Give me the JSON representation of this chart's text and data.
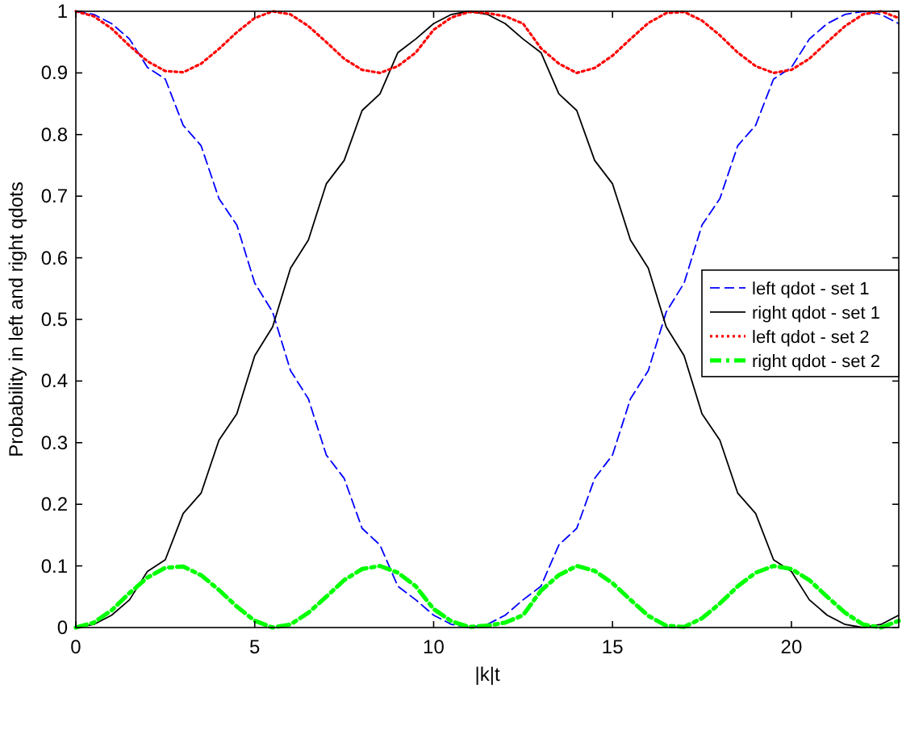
{
  "chart_data": {
    "type": "line",
    "xlabel": "|k|t",
    "ylabel": "Probability in left and right qdots",
    "x": [
      0,
      0.5,
      1,
      1.5,
      2,
      2.5,
      3,
      3.5,
      4,
      4.5,
      5,
      5.5,
      6,
      6.5,
      7,
      7.5,
      8,
      8.5,
      9,
      9.5,
      10,
      10.5,
      11,
      11.5,
      12,
      12.5,
      13,
      13.5,
      14,
      14.5,
      15,
      15.5,
      16,
      16.5,
      17,
      17.5,
      18,
      18.5,
      19,
      19.5,
      20,
      20.5,
      21,
      21.5,
      22,
      22.5,
      23
    ],
    "series": [
      {
        "name": "left qdot - set 1",
        "color": "#0000ff",
        "line_style": "dashed",
        "values": [
          1,
          0.995,
          0.98,
          0.955,
          0.909,
          0.89,
          0.815,
          0.782,
          0.696,
          0.653,
          0.559,
          0.512,
          0.417,
          0.371,
          0.28,
          0.242,
          0.161,
          0.134,
          0.067,
          0.045,
          0.02,
          0.005,
          0,
          0.005,
          0.02,
          0.045,
          0.067,
          0.134,
          0.161,
          0.242,
          0.28,
          0.371,
          0.417,
          0.512,
          0.559,
          0.653,
          0.696,
          0.782,
          0.815,
          0.89,
          0.909,
          0.955,
          0.98,
          0.995,
          1,
          0.995,
          0.98
        ]
      },
      {
        "name": "right qdot - set 1",
        "color": "#000000",
        "line_style": "solid",
        "values": [
          0,
          0.005,
          0.02,
          0.045,
          0.091,
          0.11,
          0.185,
          0.218,
          0.304,
          0.347,
          0.441,
          0.488,
          0.583,
          0.629,
          0.72,
          0.758,
          0.839,
          0.866,
          0.933,
          0.955,
          0.98,
          0.995,
          1,
          0.995,
          0.98,
          0.955,
          0.933,
          0.866,
          0.839,
          0.758,
          0.72,
          0.629,
          0.583,
          0.488,
          0.441,
          0.347,
          0.304,
          0.218,
          0.185,
          0.11,
          0.091,
          0.045,
          0.02,
          0.005,
          0,
          0.005,
          0.02
        ]
      },
      {
        "name": "left qdot - set 2",
        "color": "#ff0000",
        "line_style": "dotted",
        "values": [
          1,
          0.992,
          0.972,
          0.944,
          0.919,
          0.903,
          0.901,
          0.915,
          0.939,
          0.966,
          0.989,
          1,
          0.995,
          0.976,
          0.95,
          0.923,
          0.905,
          0.9,
          0.911,
          0.933,
          0.97,
          0.99,
          0.999,
          0.997,
          0.992,
          0.98,
          0.94,
          0.915,
          0.9,
          0.908,
          0.928,
          0.955,
          0.981,
          0.997,
          0.999,
          0.985,
          0.961,
          0.933,
          0.911,
          0.9,
          0.905,
          0.923,
          0.95,
          0.976,
          0.995,
          1,
          0.989
        ]
      },
      {
        "name": "right qdot - set 2",
        "color": "#00ff00",
        "line_style": "dashdot",
        "values": [
          0,
          0.008,
          0.028,
          0.056,
          0.081,
          0.097,
          0.099,
          0.085,
          0.061,
          0.034,
          0.011,
          0,
          0.005,
          0.024,
          0.05,
          0.077,
          0.095,
          0.1,
          0.089,
          0.067,
          0.03,
          0.01,
          0.001,
          0.003,
          0.008,
          0.02,
          0.06,
          0.085,
          0.1,
          0.092,
          0.072,
          0.045,
          0.019,
          0.003,
          0.001,
          0.015,
          0.039,
          0.067,
          0.089,
          0.1,
          0.095,
          0.077,
          0.05,
          0.024,
          0.005,
          0,
          0.011
        ]
      }
    ],
    "xlim": [
      0,
      23
    ],
    "xticks": [
      0,
      5,
      10,
      15,
      20
    ],
    "ylim": [
      0,
      1
    ],
    "yticks": [
      0,
      0.1,
      0.2,
      0.3,
      0.4,
      0.5,
      0.6,
      0.7,
      0.8,
      0.9,
      1
    ],
    "grid": false,
    "legend": "right"
  }
}
